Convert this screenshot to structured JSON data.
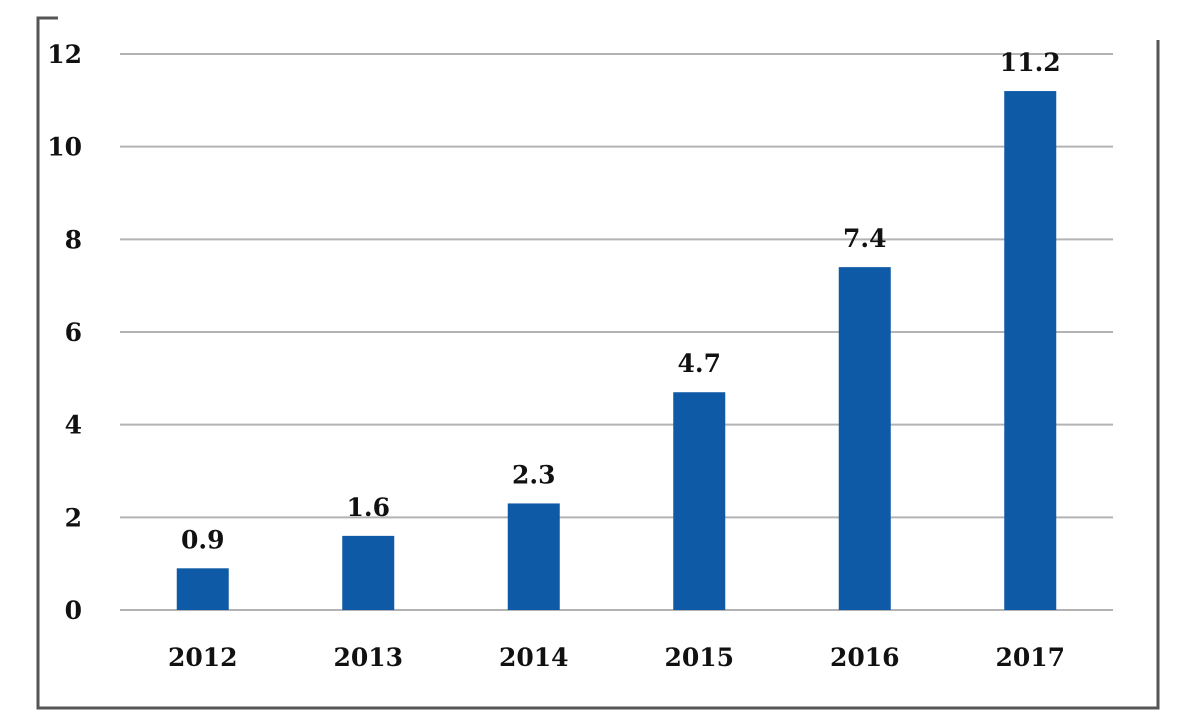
{
  "chart_data": {
    "type": "bar",
    "title": "",
    "xlabel": "",
    "ylabel": "",
    "categories": [
      "2012",
      "2013",
      "2014",
      "2015",
      "2016",
      "2017"
    ],
    "values": [
      0.9,
      1.6,
      2.3,
      4.7,
      7.4,
      11.2
    ],
    "data_labels": [
      "0.9",
      "1.6",
      "2.3",
      "4.7",
      "7.4",
      "11.2"
    ],
    "ylim": [
      0,
      12
    ],
    "yticks": [
      0,
      2,
      4,
      6,
      8,
      10,
      12
    ],
    "ytick_labels": [
      "0",
      "2",
      "4",
      "6",
      "8",
      "10",
      "12"
    ],
    "grid": true,
    "legend": "none",
    "bar_color": "#0f5aa6"
  }
}
